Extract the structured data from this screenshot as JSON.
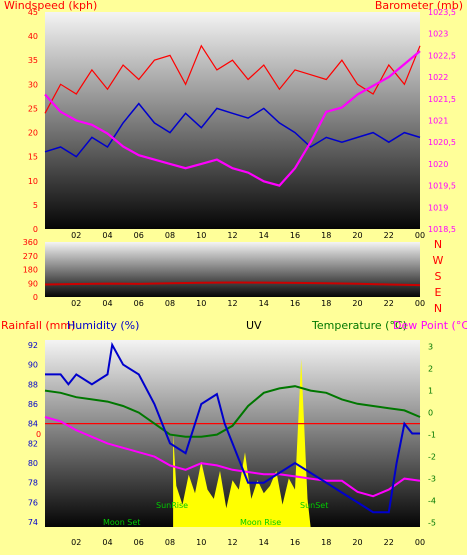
{
  "colors": {
    "page_bg": "#ffff99",
    "wind": "#ff0000",
    "avg_wind": "#0000cc",
    "barometer": "#ff00ff",
    "direction": "#cc0000",
    "humidity": "#0000cc",
    "temperature": "#007700",
    "dewpoint": "#ff00ff",
    "rainfall": "#ff0000",
    "uv": "#ffff00",
    "sun_moon_text": "#00cc00",
    "compass": "#ff0000"
  },
  "chart_data": [
    {
      "type": "line",
      "title": "",
      "y_left_label": "Windspeed (kph)",
      "y_right_label": "Barometer (mb)",
      "x_ticks": [
        "02",
        "04",
        "06",
        "08",
        "10",
        "12",
        "14",
        "16",
        "18",
        "20",
        "22",
        "00"
      ],
      "y_left_ticks": [
        0,
        5,
        10,
        15,
        20,
        25,
        30,
        35,
        40,
        45
      ],
      "y_left_range": [
        0,
        45
      ],
      "y_right_ticks": [
        "1018,5",
        "1019",
        "1019,5",
        "1020",
        "1020,5",
        "1021",
        "1021,5",
        "1022",
        "1022,5",
        "1023",
        "1023,5"
      ],
      "y_right_range": [
        1018.5,
        1023.5
      ],
      "x_range": [
        0,
        24
      ],
      "series": [
        {
          "key": "wind_gust",
          "x": [
            0,
            1,
            2,
            3,
            4,
            5,
            6,
            7,
            8,
            9,
            10,
            11,
            12,
            13,
            14,
            15,
            16,
            17,
            18,
            19,
            20,
            21,
            22,
            23,
            24
          ],
          "y": [
            24,
            30,
            28,
            33,
            29,
            34,
            31,
            35,
            36,
            30,
            38,
            33,
            35,
            31,
            34,
            29,
            33,
            32,
            31,
            35,
            30,
            28,
            34,
            30,
            38
          ]
        },
        {
          "key": "wind_avg",
          "x": [
            0,
            1,
            2,
            3,
            4,
            5,
            6,
            7,
            8,
            9,
            10,
            11,
            12,
            13,
            14,
            15,
            16,
            17,
            18,
            19,
            20,
            21,
            22,
            23,
            24
          ],
          "y": [
            16,
            17,
            15,
            19,
            17,
            22,
            26,
            22,
            20,
            24,
            21,
            25,
            24,
            23,
            25,
            22,
            20,
            17,
            19,
            18,
            19,
            20,
            18,
            20,
            19
          ]
        },
        {
          "key": "barometer",
          "x": [
            0,
            1,
            2,
            3,
            4,
            5,
            6,
            7,
            8,
            9,
            10,
            11,
            12,
            13,
            14,
            15,
            16,
            17,
            18,
            19,
            20,
            21,
            22,
            23,
            24
          ],
          "y": [
            1021.6,
            1021.2,
            1021.0,
            1020.9,
            1020.7,
            1020.4,
            1020.2,
            1020.1,
            1020.0,
            1019.9,
            1020.0,
            1020.1,
            1019.9,
            1019.8,
            1019.6,
            1019.5,
            1019.9,
            1020.5,
            1021.2,
            1021.3,
            1021.6,
            1021.8,
            1022.0,
            1022.3,
            1022.6
          ]
        }
      ]
    },
    {
      "type": "line",
      "title": "",
      "x_ticks": [
        "02",
        "04",
        "06",
        "08",
        "10",
        "12",
        "14",
        "16",
        "18",
        "20",
        "22",
        "00"
      ],
      "y_ticks": [
        0,
        90,
        180,
        270,
        360
      ],
      "y_range": [
        0,
        360
      ],
      "x_range": [
        0,
        24
      ],
      "compass_labels": [
        "N",
        "W",
        "S",
        "E",
        "N"
      ],
      "series": [
        {
          "key": "wind_direction",
          "x": [
            0,
            2,
            4,
            6,
            8,
            10,
            12,
            14,
            16,
            18,
            20,
            22,
            24
          ],
          "y": [
            82,
            85,
            88,
            86,
            90,
            93,
            95,
            94,
            92,
            90,
            87,
            82,
            78
          ]
        }
      ]
    },
    {
      "type": "line",
      "title": "",
      "labels": {
        "rainfall": "Rainfall (mm)",
        "humidity": "Humidity (%)",
        "uv": "UV",
        "temperature": "Temperature (°C)",
        "dewpoint": "Dew Point (°C)"
      },
      "x_ticks": [
        "02",
        "04",
        "06",
        "08",
        "10",
        "12",
        "14",
        "16",
        "18",
        "20",
        "22",
        "00"
      ],
      "y_left_ticks": [
        74,
        76,
        78,
        80,
        82,
        84,
        86,
        88,
        90,
        92
      ],
      "y_left_range": [
        73.5,
        92.5
      ],
      "y_right_ticks": [
        -5,
        -4,
        -3,
        -2,
        -1,
        0,
        1,
        2,
        3
      ],
      "y_right_range": [
        -5.2,
        3.3
      ],
      "rain_axis_label": "0",
      "x_range": [
        0,
        24
      ],
      "annotations": {
        "moon_set": "Moon Set",
        "sun_rise": "SunRise",
        "moon_rise": "Moon Rise",
        "sun_set": "SunSet"
      },
      "series": [
        {
          "key": "humidity",
          "x": [
            0,
            0.5,
            1,
            1.5,
            2,
            3,
            4,
            4.3,
            5,
            6,
            7,
            8,
            9,
            10,
            11,
            11.5,
            12,
            12.5,
            13,
            14,
            15,
            16,
            17,
            18,
            19,
            20,
            21,
            22,
            22.5,
            23,
            23.5,
            24
          ],
          "y": [
            89,
            89,
            89,
            88,
            89,
            88,
            89,
            92,
            90,
            89,
            86,
            82,
            81,
            86,
            87,
            84,
            82,
            80,
            78,
            78,
            79,
            80,
            79,
            78,
            77,
            76,
            75,
            75,
            80,
            84,
            83,
            83
          ]
        },
        {
          "key": "temperature",
          "x": [
            0,
            1,
            2,
            3,
            4,
            5,
            6,
            7,
            8,
            9,
            10,
            11,
            12,
            13,
            14,
            15,
            16,
            17,
            18,
            19,
            20,
            21,
            22,
            23,
            24
          ],
          "y": [
            1.0,
            0.9,
            0.7,
            0.6,
            0.5,
            0.3,
            0.0,
            -0.5,
            -1.0,
            -1.1,
            -1.1,
            -1.0,
            -0.6,
            0.3,
            0.9,
            1.1,
            1.2,
            1.0,
            0.9,
            0.6,
            0.4,
            0.3,
            0.2,
            0.1,
            -0.2
          ]
        },
        {
          "key": "dewpoint",
          "x": [
            0,
            1,
            2,
            3,
            4,
            5,
            6,
            7,
            8,
            9,
            10,
            11,
            12,
            13,
            14,
            15,
            16,
            17,
            18,
            19,
            20,
            21,
            22,
            23,
            24
          ],
          "y": [
            -0.2,
            -0.4,
            -0.8,
            -1.1,
            -1.4,
            -1.6,
            -1.8,
            -2.0,
            -2.4,
            -2.6,
            -2.3,
            -2.4,
            -2.6,
            -2.7,
            -2.8,
            -2.8,
            -2.9,
            -3.0,
            -3.1,
            -3.1,
            -3.6,
            -3.8,
            -3.5,
            -3.0,
            -3.1
          ]
        },
        {
          "key": "uv",
          "x": [
            8.2,
            8.4,
            8.8,
            9.2,
            9.6,
            10,
            10.4,
            10.8,
            11.2,
            11.6,
            12,
            12.4,
            12.8,
            13.2,
            13.6,
            14,
            14.4,
            14.8,
            15.2,
            15.6,
            16,
            16.4,
            16.8,
            17
          ],
          "y": [
            0.5,
            0.22,
            0.12,
            0.28,
            0.18,
            0.35,
            0.2,
            0.15,
            0.3,
            0.1,
            0.25,
            0.2,
            0.4,
            0.15,
            0.25,
            0.18,
            0.22,
            0.3,
            0.12,
            0.26,
            0.2,
            0.9,
            0.15,
            0
          ]
        },
        {
          "key": "rainfall",
          "x": [
            0,
            24
          ],
          "y": [
            0,
            0
          ]
        }
      ]
    }
  ]
}
